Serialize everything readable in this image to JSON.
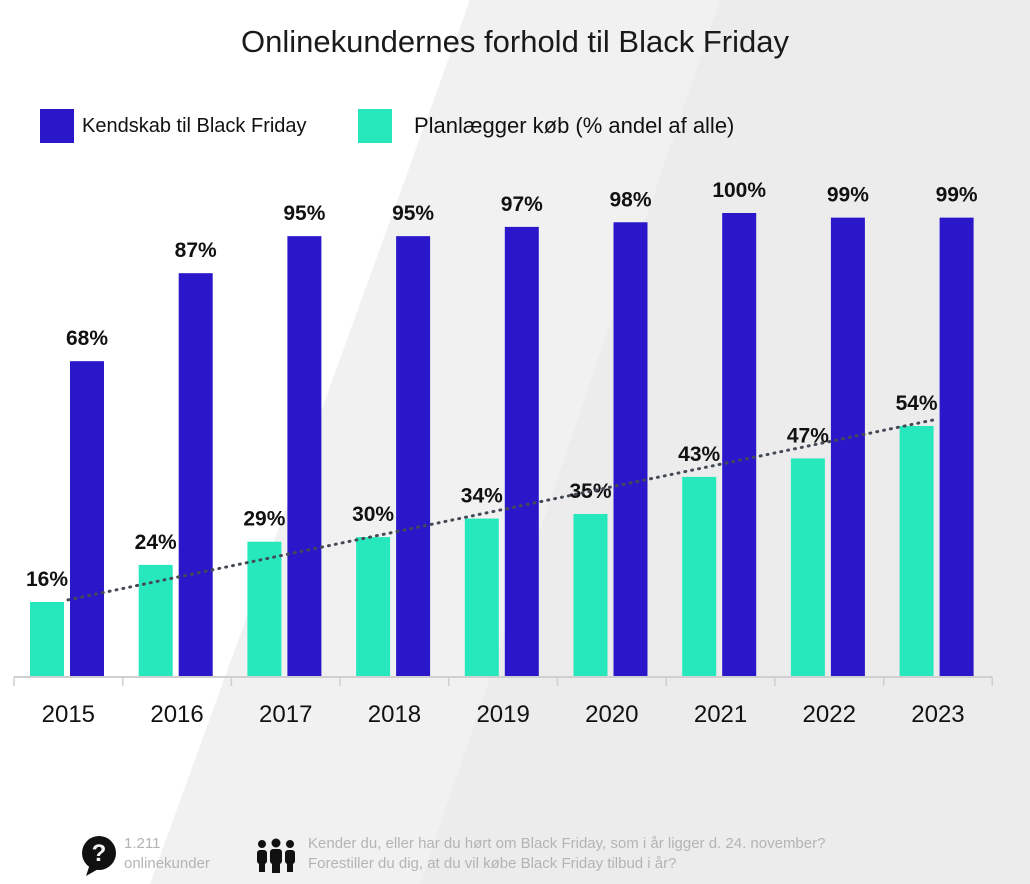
{
  "title": "Onlinekundernes forhold til Black Friday",
  "legend": {
    "series1": "Kendskab til Black Friday",
    "series2": "Planlægger køb (% andel af alle)"
  },
  "colors": {
    "awareness": "#2a17c9",
    "planning": "#27e8bc",
    "trendline": "#444a55",
    "axis": "#cfcfcf",
    "footer_text": "#b4b4b4"
  },
  "chart_data": {
    "type": "bar",
    "categories": [
      "2015",
      "2016",
      "2017",
      "2018",
      "2019",
      "2020",
      "2021",
      "2022",
      "2023"
    ],
    "series": [
      {
        "name": "Kendskab til Black Friday",
        "values": [
          68,
          87,
          95,
          95,
          97,
          98,
          100,
          99,
          99
        ]
      },
      {
        "name": "Planlægger køb (% andel af alle)",
        "values": [
          16,
          24,
          29,
          30,
          34,
          35,
          43,
          47,
          54
        ]
      }
    ],
    "data_labels": {
      "awareness": [
        "68%",
        "87%",
        "95%",
        "95%",
        "97%",
        "98%",
        "100%",
        "99%",
        "99%"
      ],
      "planning": [
        "16%",
        "24%",
        "29%",
        "30%",
        "34%",
        "35%",
        "43%",
        "47%",
        "54%"
      ]
    },
    "trendline": {
      "series": "Planlægger køb (% andel af alle)",
      "style": "dotted"
    },
    "ylim": [
      0,
      100
    ],
    "grid": false,
    "legend_position": "top-left"
  },
  "footer": {
    "respondents_count": "1.211",
    "respondents_label": "onlinekunder",
    "question_1": "Kender du, eller har du hørt om Black Friday, som i år ligger d. 24. november?",
    "question_2": "Forestiller du dig, at du vil købe Black Friday tilbud i år?",
    "respondents_icon": "speech-bubble-question-icon",
    "questions_icon": "people-group-icon"
  }
}
